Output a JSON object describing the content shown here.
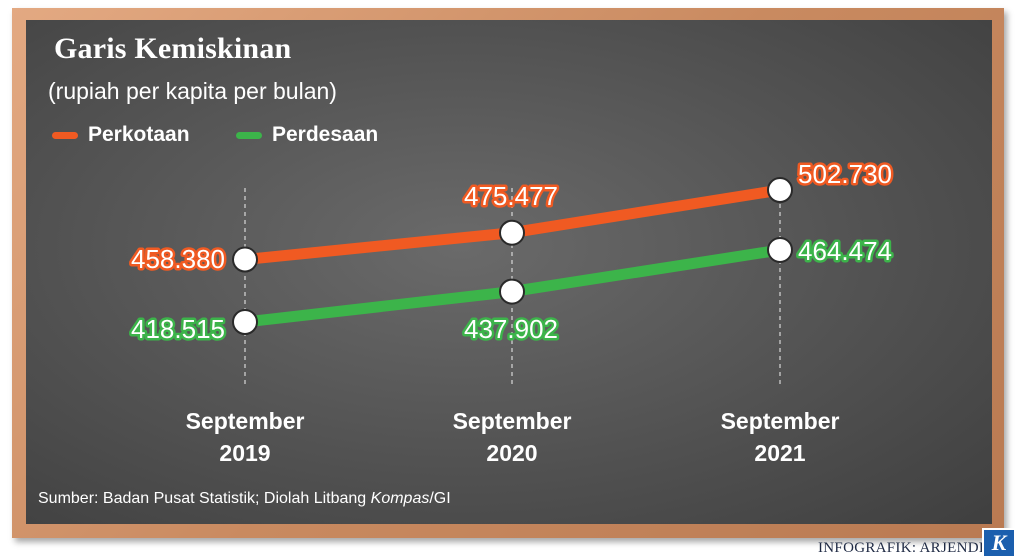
{
  "title": "Garis Kemiskinan",
  "subtitle": "(rupiah per kapita per bulan)",
  "source_prefix": "Sumber: Badan Pusat Statistik; Diolah Litbang ",
  "source_italic": "Kompas",
  "source_suffix": "/GI",
  "credit": "INFOGRAFIK: ARJENDRO",
  "logo_letter": "K",
  "colors": {
    "perkotaan": "#f05a22",
    "perdesaan": "#3cb44a"
  },
  "chart_data": {
    "type": "line",
    "title": "Garis Kemiskinan",
    "subtitle": "(rupiah per kapita per bulan)",
    "categories": [
      [
        "September",
        "2019"
      ],
      [
        "September",
        "2020"
      ],
      [
        "September",
        "2021"
      ]
    ],
    "series": [
      {
        "name": "Perkotaan",
        "color": "#f05a22",
        "values": [
          458380,
          475477,
          502730
        ],
        "labels": [
          "458.380",
          "475.477",
          "502.730"
        ]
      },
      {
        "name": "Perdesaan",
        "color": "#3cb44a",
        "values": [
          418515,
          437902,
          464474
        ],
        "labels": [
          "418.515",
          "437.902",
          "464.474"
        ]
      }
    ],
    "ylim": [
      400000,
      510000
    ],
    "legend": "top-left",
    "grid": false
  }
}
